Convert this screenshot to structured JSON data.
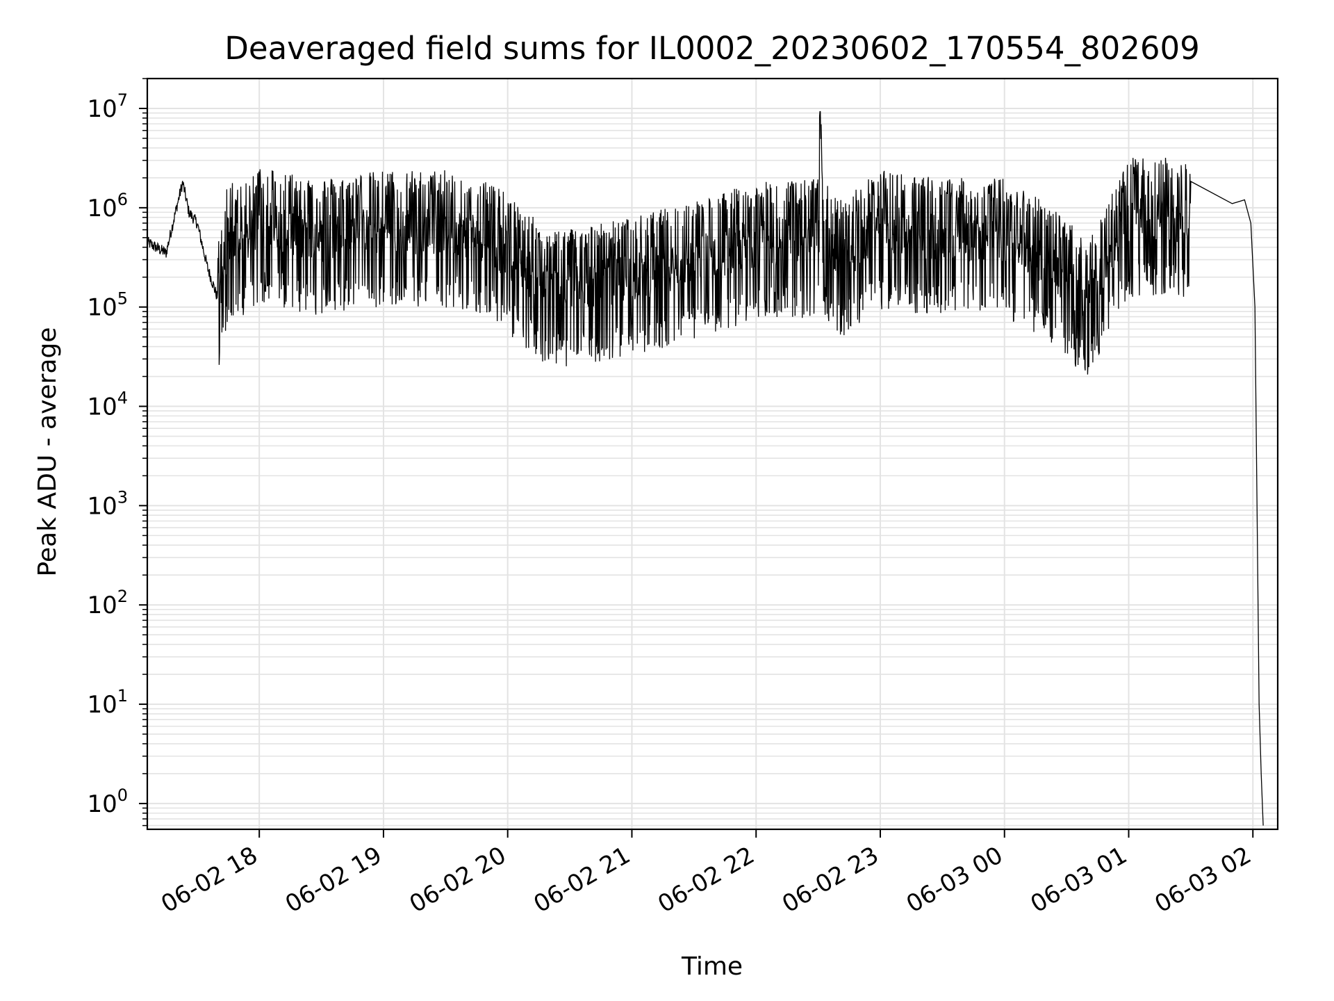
{
  "chart_data": {
    "type": "line",
    "title": "Deaveraged field sums for IL0002_20230602_170554_802609",
    "xlabel": "Time",
    "ylabel": "Peak ADU - average",
    "yscale": "log",
    "ylim": [
      0.55,
      20000000
    ],
    "xlim": [
      "2023-06-02 17:05:54",
      "2023-06-03 02:12:00"
    ],
    "grid": true,
    "legend": "none",
    "line_color": "#000000",
    "grid_color": "#e3e3e3",
    "x_ticks": [
      "2023-06-02 18:00",
      "2023-06-02 19:00",
      "2023-06-02 20:00",
      "2023-06-02 21:00",
      "2023-06-02 22:00",
      "2023-06-02 23:00",
      "2023-06-03 00:00",
      "2023-06-03 01:00",
      "2023-06-03 02:00"
    ],
    "x_tick_labels": [
      "06-02 18",
      "06-02 19",
      "06-02 20",
      "06-02 21",
      "06-02 22",
      "06-02 23",
      "06-03 00",
      "06-03 01",
      "06-03 02"
    ],
    "y_ticks": [
      1,
      10,
      100,
      1000,
      10000,
      100000,
      1000000,
      10000000
    ],
    "y_tick_labels": [
      {
        "base": "10",
        "exp": "0"
      },
      {
        "base": "10",
        "exp": "1"
      },
      {
        "base": "10",
        "exp": "2"
      },
      {
        "base": "10",
        "exp": "3"
      },
      {
        "base": "10",
        "exp": "4"
      },
      {
        "base": "10",
        "exp": "5"
      },
      {
        "base": "10",
        "exp": "6"
      },
      {
        "base": "10",
        "exp": "7"
      }
    ],
    "series": [
      {
        "x": [
          "2023-06-02 17:05:54",
          "2023-06-02 17:10",
          "2023-06-02 17:15",
          "2023-06-02 17:20",
          "2023-06-02 17:23",
          "2023-06-02 17:26",
          "2023-06-02 17:30",
          "2023-06-02 17:35",
          "2023-06-02 17:40",
          "2023-06-02 17:45",
          "2023-06-02 17:52",
          "2023-06-02 18:00",
          "2023-06-02 18:30",
          "2023-06-02 19:00",
          "2023-06-02 19:30",
          "2023-06-02 19:50",
          "2023-06-02 20:20",
          "2023-06-02 21:00",
          "2023-06-02 21:30",
          "2023-06-02 22:00",
          "2023-06-02 22:30",
          "2023-06-02 22:31",
          "2023-06-02 22:32",
          "2023-06-02 22:40",
          "2023-06-02 23:00",
          "2023-06-02 23:30",
          "2023-06-03 00:00",
          "2023-06-03 00:20",
          "2023-06-03 00:40",
          "2023-06-03 01:00",
          "2023-06-03 01:30",
          "2023-06-03 01:50",
          "2023-06-03 01:56",
          "2023-06-03 01:59",
          "2023-06-03 02:01",
          "2023-06-03 02:03",
          "2023-06-03 02:04",
          "2023-06-03 02:05"
        ],
        "y": [
          450000,
          400000,
          350000,
          1000000,
          1800000,
          900000,
          700000,
          250000,
          120000,
          500000,
          400000,
          700000,
          500000,
          600000,
          600000,
          500000,
          150000,
          200000,
          300000,
          450000,
          500000,
          9300000,
          500000,
          300000,
          600000,
          500000,
          500000,
          300000,
          120000,
          800000,
          800000,
          1100000,
          1200000,
          700000,
          100000,
          10,
          2,
          0.6
        ]
      }
    ]
  }
}
